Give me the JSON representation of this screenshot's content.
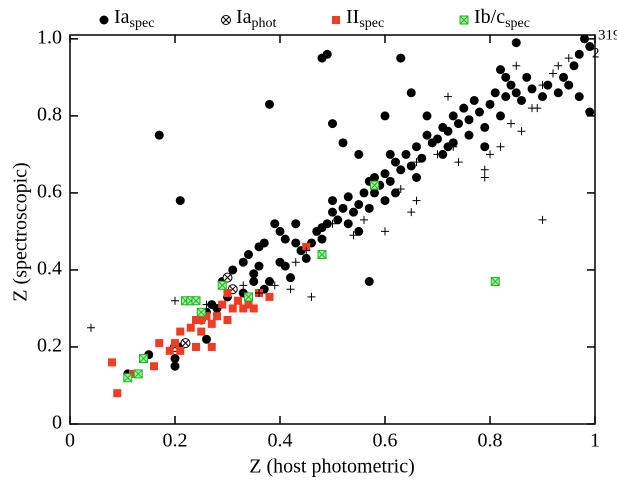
{
  "chart_data": {
    "type": "scatter",
    "x_label": "Z (host photometric)",
    "y_label": "Z (spectroscopic)",
    "xlim": [
      0,
      1
    ],
    "ylim": [
      0,
      1.01
    ],
    "xticks": [
      0,
      0.2,
      0.4,
      0.6,
      0.8,
      1
    ],
    "yticks": [
      0,
      0.2,
      0.4,
      0.6,
      0.8,
      {
        "value": 1,
        "label": "1.0"
      }
    ],
    "annotations": [
      "319",
      "2"
    ],
    "series": [
      {
        "name": "Ia",
        "subscript": "spec",
        "marker": "circle",
        "color": "#000000",
        "x": [
          0.17,
          0.21,
          0.38,
          0.48,
          0.49,
          0.63,
          0.65,
          0.85,
          0.99,
          0.57,
          0.11,
          0.15,
          0.2,
          0.2,
          0.21,
          0.25,
          0.26,
          0.27,
          0.28,
          0.3,
          0.31,
          0.33,
          0.35,
          0.37,
          0.38,
          0.36,
          0.33,
          0.34,
          0.36,
          0.37,
          0.4,
          0.41,
          0.42,
          0.39,
          0.41,
          0.43,
          0.44,
          0.46,
          0.47,
          0.48,
          0.49,
          0.5,
          0.5,
          0.51,
          0.52,
          0.53,
          0.54,
          0.55,
          0.56,
          0.57,
          0.58,
          0.58,
          0.59,
          0.6,
          0.6,
          0.61,
          0.62,
          0.62,
          0.63,
          0.64,
          0.65,
          0.66,
          0.67,
          0.68,
          0.69,
          0.7,
          0.71,
          0.72,
          0.73,
          0.74,
          0.75,
          0.76,
          0.77,
          0.78,
          0.79,
          0.8,
          0.81,
          0.82,
          0.83,
          0.84,
          0.85,
          0.86,
          0.87,
          0.88,
          0.9,
          0.91,
          0.93,
          0.94,
          0.95,
          0.96,
          0.97,
          0.98,
          0.99,
          0.97,
          0.82,
          0.83,
          0.71,
          0.72,
          0.66,
          0.55,
          0.53,
          0.45,
          0.29,
          0.26,
          0.3,
          0.31,
          0.5,
          0.52,
          0.55,
          0.6,
          0.61,
          0.73,
          0.76,
          0.79,
          0.68,
          0.57,
          0.48,
          0.43,
          0.4,
          0.35
        ],
        "values": [
          0.75,
          0.58,
          0.83,
          0.95,
          0.96,
          0.95,
          0.86,
          0.99,
          0.81,
          0.37,
          0.13,
          0.18,
          0.15,
          0.17,
          0.2,
          0.27,
          0.29,
          0.31,
          0.3,
          0.33,
          0.35,
          0.34,
          0.37,
          0.35,
          0.37,
          0.41,
          0.42,
          0.44,
          0.46,
          0.47,
          0.42,
          0.41,
          0.38,
          0.52,
          0.48,
          0.47,
          0.45,
          0.47,
          0.5,
          0.48,
          0.52,
          0.55,
          0.58,
          0.53,
          0.56,
          0.59,
          0.55,
          0.57,
          0.6,
          0.56,
          0.6,
          0.64,
          0.62,
          0.58,
          0.65,
          0.63,
          0.6,
          0.68,
          0.66,
          0.7,
          0.67,
          0.72,
          0.69,
          0.75,
          0.73,
          0.74,
          0.77,
          0.76,
          0.8,
          0.78,
          0.82,
          0.79,
          0.84,
          0.81,
          0.77,
          0.83,
          0.86,
          0.8,
          0.85,
          0.88,
          0.86,
          0.84,
          0.9,
          0.87,
          0.85,
          0.88,
          0.86,
          0.9,
          0.88,
          0.93,
          0.85,
          1.0,
          0.98,
          0.96,
          0.92,
          0.9,
          0.7,
          0.72,
          0.64,
          0.5,
          0.52,
          0.43,
          0.37,
          0.22,
          0.38,
          0.4,
          0.78,
          0.73,
          0.7,
          0.8,
          0.7,
          0.73,
          0.75,
          0.72,
          0.8,
          0.63,
          0.51,
          0.52,
          0.5,
          0.39
        ]
      },
      {
        "name": "Ia",
        "subscript": "phot",
        "marker": "circled-x",
        "color": "#000000",
        "x": [
          0.3,
          0.22,
          0.31,
          0.2
        ],
        "values": [
          0.38,
          0.21,
          0.35,
          0.2
        ]
      },
      {
        "name": "II",
        "subscript": "spec",
        "marker": "square",
        "color": "#f03c24",
        "x": [
          0.08,
          0.09,
          0.12,
          0.16,
          0.17,
          0.19,
          0.2,
          0.21,
          0.21,
          0.23,
          0.24,
          0.24,
          0.25,
          0.26,
          0.27,
          0.27,
          0.28,
          0.29,
          0.3,
          0.31,
          0.32,
          0.33,
          0.34,
          0.34,
          0.35,
          0.36,
          0.38,
          0.45,
          0.3,
          0.25
        ],
        "values": [
          0.16,
          0.08,
          0.13,
          0.15,
          0.21,
          0.19,
          0.21,
          0.19,
          0.24,
          0.25,
          0.2,
          0.27,
          0.24,
          0.28,
          0.2,
          0.26,
          0.28,
          0.31,
          0.34,
          0.3,
          0.32,
          0.3,
          0.33,
          0.31,
          0.3,
          0.34,
          0.33,
          0.46,
          0.27,
          0.27
        ]
      },
      {
        "name": "Ib/c",
        "subscript": "spec",
        "marker": "boxed-x",
        "color": "#22b422",
        "x": [
          0.13,
          0.14,
          0.22,
          0.23,
          0.24,
          0.25,
          0.29,
          0.34,
          0.48,
          0.58,
          0.81,
          0.11
        ],
        "values": [
          0.13,
          0.17,
          0.32,
          0.32,
          0.32,
          0.29,
          0.36,
          0.33,
          0.44,
          0.62,
          0.37,
          0.12
        ]
      },
      {
        "marker": "plus",
        "color": "#000000",
        "x": [
          0.04,
          0.2,
          0.26,
          0.42,
          0.46,
          0.45,
          0.56,
          0.6,
          0.65,
          0.66,
          0.63,
          0.66,
          0.7,
          0.68,
          0.74,
          0.79,
          0.82,
          0.86,
          0.88,
          0.9,
          0.9,
          0.92,
          0.93,
          0.95,
          0.89,
          0.84,
          0.5,
          0.54,
          0.39,
          0.33,
          0.28,
          0.36,
          0.43,
          0.79,
          0.8,
          0.85,
          0.73,
          0.72
        ],
        "values": [
          0.25,
          0.32,
          0.31,
          0.35,
          0.33,
          0.45,
          0.53,
          0.5,
          0.55,
          0.58,
          0.61,
          0.68,
          0.7,
          0.8,
          0.68,
          0.66,
          0.72,
          0.76,
          0.82,
          0.53,
          0.88,
          0.91,
          0.93,
          0.95,
          0.82,
          0.78,
          0.52,
          0.49,
          0.36,
          0.36,
          0.3,
          0.34,
          0.42,
          0.64,
          0.7,
          0.93,
          0.72,
          0.85
        ]
      }
    ]
  }
}
